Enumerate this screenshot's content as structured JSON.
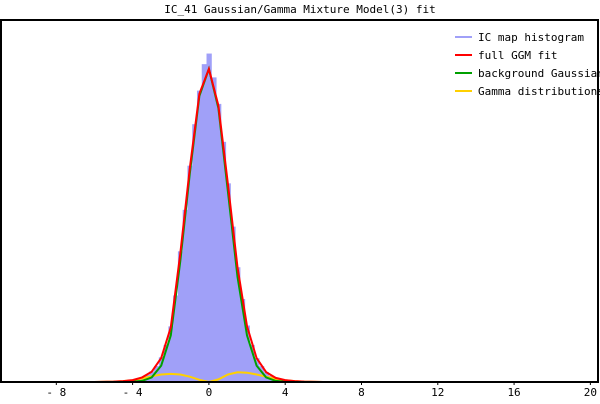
{
  "chart_data": {
    "type": "line",
    "title": "IC_41 Gaussian/Gamma Mixture Model(3) fit",
    "xlabel": "",
    "ylabel": "",
    "xlim": [
      -10.9,
      20.4
    ],
    "ylim": [
      0,
      0.41
    ],
    "x_ticks": [
      "- 8",
      "- 4",
      "0",
      "4",
      "8",
      "12",
      "16",
      "20"
    ],
    "x_tick_values": [
      -8,
      -4,
      0,
      4,
      8,
      12,
      16,
      20
    ],
    "grid": false,
    "legend_position": "top-right",
    "histogram": {
      "name": "IC map histogram",
      "color": "#a0a0f8",
      "bin_width": 0.25,
      "x": [
        -5,
        -4.75,
        -4.5,
        -4.25,
        -4,
        -3.75,
        -3.5,
        -3.25,
        -3,
        -2.75,
        -2.5,
        -2.25,
        -2,
        -1.75,
        -1.5,
        -1.25,
        -1,
        -0.75,
        -0.5,
        -0.25,
        0,
        0.25,
        0.5,
        0.75,
        1,
        1.25,
        1.5,
        1.75,
        2,
        2.25,
        2.5,
        2.75,
        3,
        3.25,
        3.5,
        3.75,
        4,
        4.25,
        4.5,
        4.75,
        5
      ],
      "values": [
        0.0006,
        0.0008,
        0.0012,
        0.0016,
        0.0025,
        0.0035,
        0.0055,
        0.008,
        0.012,
        0.018,
        0.028,
        0.042,
        0.063,
        0.098,
        0.148,
        0.195,
        0.245,
        0.292,
        0.33,
        0.36,
        0.372,
        0.345,
        0.315,
        0.272,
        0.225,
        0.176,
        0.13,
        0.094,
        0.064,
        0.042,
        0.027,
        0.018,
        0.011,
        0.007,
        0.0048,
        0.0033,
        0.0022,
        0.0015,
        0.001,
        0.0007,
        0.0005
      ]
    },
    "x": [
      -10.9,
      -6,
      -5,
      -4.5,
      -4,
      -3.5,
      -3,
      -2.5,
      -2,
      -1.5,
      -1,
      -0.5,
      0,
      0.5,
      1,
      1.5,
      2,
      2.5,
      3,
      3.5,
      4,
      4.5,
      5,
      6,
      20.4
    ],
    "series": [
      {
        "name": "full GGM fit",
        "color": "#ff0000",
        "values": [
          0,
          0,
          0.0005,
          0.001,
          0.0022,
          0.0052,
          0.0117,
          0.0271,
          0.062,
          0.1455,
          0.242,
          0.3265,
          0.3546,
          0.313,
          0.2235,
          0.13,
          0.0633,
          0.0271,
          0.0112,
          0.0047,
          0.0022,
          0.001,
          0.0005,
          0,
          0
        ]
      },
      {
        "name": "background Gaussian",
        "color": "#00a000",
        "values": [
          0,
          0,
          0,
          4e-05,
          0.0002,
          0.0012,
          0.0052,
          0.0186,
          0.0528,
          0.137,
          0.236,
          0.324,
          0.3546,
          0.31,
          0.215,
          0.119,
          0.0528,
          0.0186,
          0.0052,
          0.0012,
          0.0002,
          4e-05,
          0,
          0,
          0
        ]
      },
      {
        "name": "Gamma distributions",
        "color": "#ffd000",
        "values": [
          0,
          0,
          0.0005,
          0.001,
          0.002,
          0.004,
          0.0065,
          0.0085,
          0.0092,
          0.0085,
          0.006,
          0.0025,
          0,
          0.003,
          0.0085,
          0.011,
          0.0105,
          0.0085,
          0.006,
          0.0035,
          0.002,
          0.001,
          0.0005,
          0,
          0
        ]
      }
    ]
  }
}
